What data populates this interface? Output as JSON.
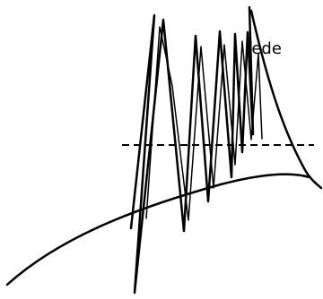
{
  "figure": {
    "label_text": "fede",
    "stroke_color": "#000000",
    "background_color": "#ffffff"
  }
}
